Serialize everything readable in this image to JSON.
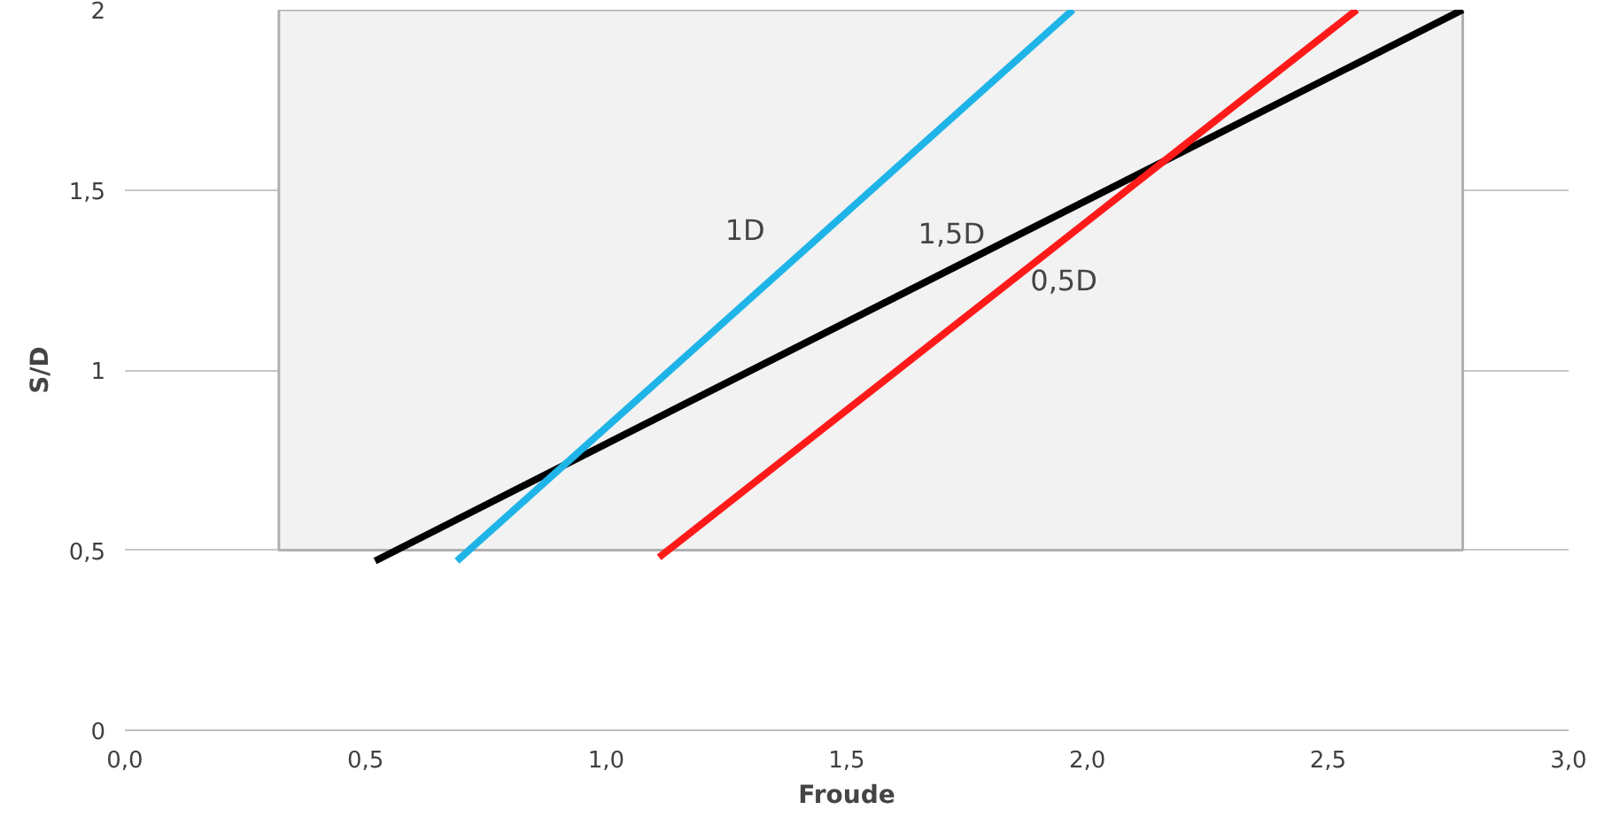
{
  "chart_data": {
    "type": "line",
    "xlabel": "Froude",
    "ylabel": "S/D",
    "xlim": [
      0,
      3
    ],
    "ylim": [
      0,
      2
    ],
    "xticks": [
      {
        "value": 0,
        "label": "0,0"
      },
      {
        "value": 0.5,
        "label": "0,5"
      },
      {
        "value": 1,
        "label": "1,0"
      },
      {
        "value": 1.5,
        "label": "1,5"
      },
      {
        "value": 2,
        "label": "2,0"
      },
      {
        "value": 2.5,
        "label": "2,5"
      },
      {
        "value": 3,
        "label": "3,0"
      }
    ],
    "yticks": [
      0,
      {
        "value": 0.5,
        "label": "0,5"
      },
      1,
      {
        "value": 1.5,
        "label": "1,5"
      },
      2
    ],
    "grid": "y",
    "marker": "none",
    "line_style": "solid",
    "series": [
      {
        "type": "area",
        "color": "#f2f2f2",
        "x": [
          0.32,
          2.78
        ],
        "values": [
          null,
          null
        ],
        "lower": [
          0.5,
          0.5
        ],
        "upper": [
          2,
          2
        ]
      },
      {
        "name": "1,5D",
        "color": "#000000",
        "x": [
          0.52,
          2.78
        ],
        "values": [
          0.47,
          2
        ]
      },
      {
        "name": "1D",
        "color": "#1fb4e8",
        "x": [
          0.69,
          1.97
        ],
        "values": [
          0.47,
          2
        ]
      },
      {
        "name": "0,5D",
        "color": "#ff1a1a",
        "x": [
          1.11,
          2.56
        ],
        "values": [
          0.48,
          2
        ]
      }
    ]
  }
}
